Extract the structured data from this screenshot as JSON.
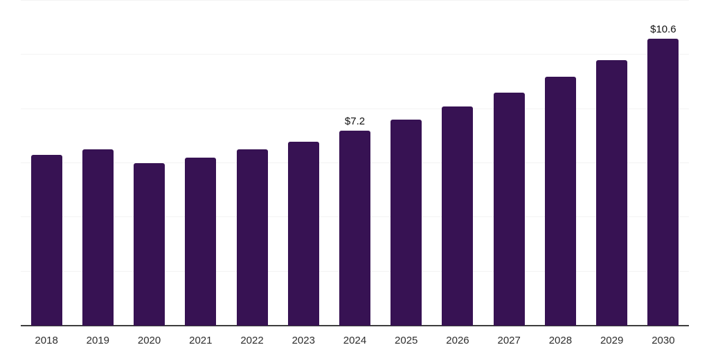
{
  "chart_data": {
    "type": "bar",
    "categories": [
      "2018",
      "2019",
      "2020",
      "2021",
      "2022",
      "2023",
      "2024",
      "2025",
      "2026",
      "2027",
      "2028",
      "2029",
      "2030"
    ],
    "values": [
      6.3,
      6.5,
      6.0,
      6.2,
      6.5,
      6.8,
      7.2,
      7.6,
      8.1,
      8.6,
      9.2,
      9.8,
      10.6
    ],
    "data_labels": {
      "2024": "$7.2",
      "2030": "$10.6"
    },
    "ylim": [
      0,
      12
    ],
    "grid_step": 2,
    "grid": true,
    "legend_position": "none",
    "bar_color": "#371253",
    "gridline_color": "#f3f3f3",
    "axis_color": "#3d3d3d",
    "value_label_color": "#111111",
    "tick_label_color": "#2d2d2d"
  }
}
